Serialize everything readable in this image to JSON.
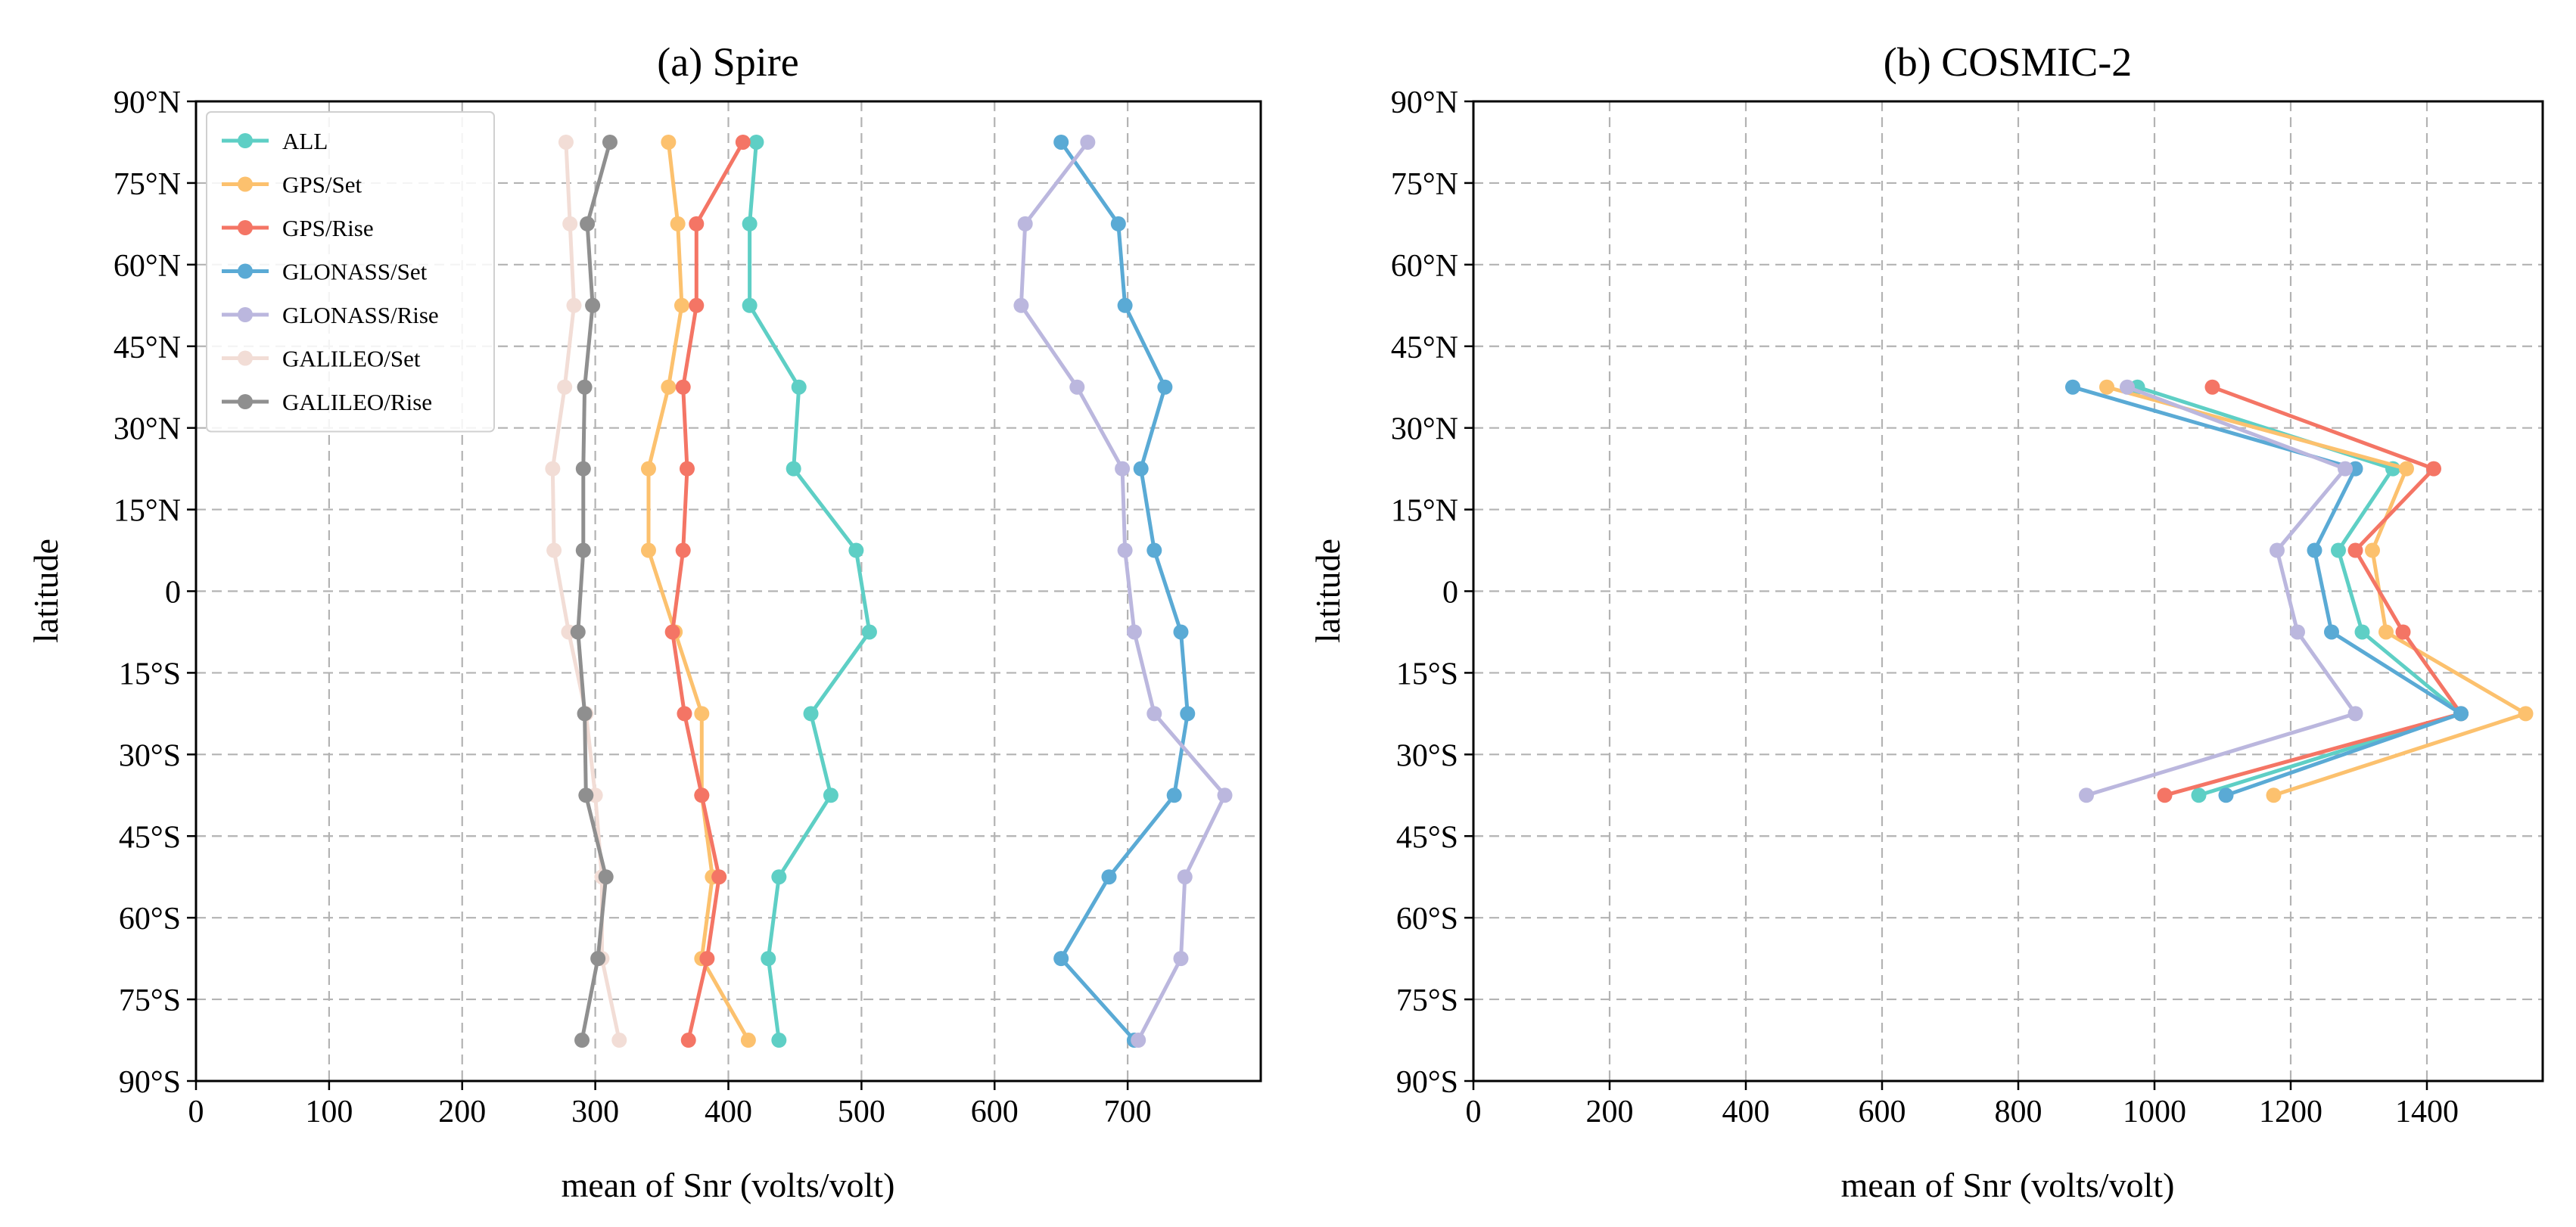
{
  "chart_data": [
    {
      "type": "line",
      "title": "(a) Spire",
      "xlabel": "mean of Snr (volts/volt)",
      "ylabel": "latitude",
      "xlim": [
        0,
        800
      ],
      "ylim": [
        -90,
        90
      ],
      "xticks": [
        0,
        100,
        200,
        300,
        400,
        500,
        600,
        700
      ],
      "xtick_labels": [
        "0",
        "100",
        "200",
        "300",
        "400",
        "500",
        "600",
        "700"
      ],
      "yticks": [
        90,
        75,
        60,
        45,
        30,
        15,
        0,
        -15,
        -30,
        -45,
        -60,
        -75,
        -90
      ],
      "ytick_labels": [
        "90°N",
        "75°N",
        "60°N",
        "45°N",
        "30°N",
        "15°N",
        "0",
        "15°S",
        "30°S",
        "45°S",
        "60°S",
        "75°S",
        "90°S"
      ],
      "grid": true,
      "legend": "top-left",
      "latitudes": [
        82.5,
        67.5,
        52.5,
        37.5,
        22.5,
        7.5,
        -7.5,
        -22.5,
        -37.5,
        -52.5,
        -67.5,
        -82.5
      ],
      "series": [
        {
          "name": "ALL",
          "color": "#5ecfc5",
          "values": [
            421,
            416,
            416,
            453,
            449,
            496,
            506,
            462,
            477,
            438,
            430,
            438
          ]
        },
        {
          "name": "GPS/Set",
          "color": "#fcc16e",
          "values": [
            355,
            362,
            365,
            355,
            340,
            340,
            360,
            380,
            380,
            388,
            380,
            415
          ]
        },
        {
          "name": "GPS/Rise",
          "color": "#f47565",
          "values": [
            411,
            376,
            376,
            366,
            369,
            366,
            358,
            367,
            380,
            393,
            384,
            370
          ]
        },
        {
          "name": "GLONASS/Set",
          "color": "#5aaad5",
          "values": [
            650,
            693,
            698,
            728,
            710,
            720,
            740,
            745,
            735,
            686,
            650,
            705
          ]
        },
        {
          "name": "GLONASS/Rise",
          "color": "#bbb7de",
          "values": [
            670,
            623,
            620,
            662,
            696,
            698,
            705,
            720,
            773,
            743,
            740,
            708
          ]
        },
        {
          "name": "GALILEO/Set",
          "color": "#f2ddd6",
          "values": [
            278,
            281,
            284,
            277,
            268,
            269,
            280,
            293,
            300,
            305,
            305,
            318
          ]
        },
        {
          "name": "GALILEO/Rise",
          "color": "#8f8f8f",
          "values": [
            311,
            294,
            298,
            292,
            291,
            291,
            287,
            292,
            293,
            308,
            302,
            290
          ]
        }
      ]
    },
    {
      "type": "line",
      "title": "(b) COSMIC-2",
      "xlabel": "mean of Snr (volts/volt)",
      "ylabel": "latitude",
      "xlim": [
        0,
        1570
      ],
      "ylim": [
        -90,
        90
      ],
      "xticks": [
        0,
        200,
        400,
        600,
        800,
        1000,
        1200,
        1400
      ],
      "xtick_labels": [
        "0",
        "200",
        "400",
        "600",
        "800",
        "1000",
        "1200",
        "1400"
      ],
      "yticks": [
        90,
        75,
        60,
        45,
        30,
        15,
        0,
        -15,
        -30,
        -45,
        -60,
        -75,
        -90
      ],
      "ytick_labels": [
        "90°N",
        "75°N",
        "60°N",
        "45°N",
        "30°N",
        "15°N",
        "0",
        "15°S",
        "30°S",
        "45°S",
        "60°S",
        "75°S",
        "90°S"
      ],
      "grid": true,
      "latitudes": [
        37.5,
        22.5,
        7.5,
        -7.5,
        -22.5,
        -37.5
      ],
      "series": [
        {
          "name": "ALL",
          "color": "#5ecfc5",
          "values": [
            975,
            1350,
            1270,
            1305,
            1450,
            1065
          ]
        },
        {
          "name": "GPS/Set",
          "color": "#fcc16e",
          "values": [
            930,
            1370,
            1320,
            1340,
            1545,
            1175
          ]
        },
        {
          "name": "GPS/Rise",
          "color": "#f47565",
          "values": [
            1085,
            1410,
            1295,
            1365,
            1450,
            1015
          ]
        },
        {
          "name": "GLONASS/Set",
          "color": "#5aaad5",
          "values": [
            880,
            1295,
            1235,
            1260,
            1450,
            1105
          ]
        },
        {
          "name": "GLONASS/Rise",
          "color": "#bbb7de",
          "values": [
            960,
            1280,
            1180,
            1210,
            1295,
            900
          ]
        }
      ]
    }
  ]
}
